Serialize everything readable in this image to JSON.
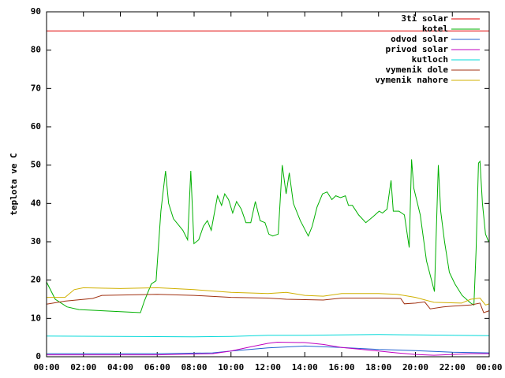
{
  "chart_data": {
    "type": "line",
    "ylabel": "teplota ve C",
    "xlim": [
      0,
      24
    ],
    "xticks": [
      {
        "value": 0,
        "label": "00:00"
      },
      {
        "value": 2,
        "label": "02:00"
      },
      {
        "value": 4,
        "label": "04:00"
      },
      {
        "value": 6,
        "label": "06:00"
      },
      {
        "value": 8,
        "label": "08:00"
      },
      {
        "value": 10,
        "label": "10:00"
      },
      {
        "value": 12,
        "label": "12:00"
      },
      {
        "value": 14,
        "label": "14:00"
      },
      {
        "value": 16,
        "label": "16:00"
      },
      {
        "value": 18,
        "label": "18:00"
      },
      {
        "value": 20,
        "label": "20:00"
      },
      {
        "value": 22,
        "label": "22:00"
      },
      {
        "value": 24,
        "label": "00:00"
      }
    ],
    "ylim": [
      0,
      90
    ],
    "yticks": [
      0,
      10,
      20,
      30,
      40,
      50,
      60,
      70,
      80,
      90
    ],
    "legend": "top-right",
    "series": [
      {
        "name": "3ti solar",
        "color": "#e00000",
        "x": [
          0,
          24
        ],
        "values": [
          85,
          85
        ]
      },
      {
        "name": "kotel",
        "color": "#00b000",
        "x": [
          0,
          0.47,
          1.11,
          1.75,
          3.03,
          4.32,
          5.09,
          5.3,
          5.68,
          5.94,
          6.2,
          6.45,
          6.62,
          6.88,
          7.39,
          7.65,
          7.82,
          7.99,
          8.25,
          8.5,
          8.72,
          8.93,
          9.27,
          9.49,
          9.66,
          9.87,
          10.09,
          10.3,
          10.56,
          10.81,
          11.07,
          11.32,
          11.58,
          11.84,
          12.05,
          12.26,
          12.56,
          12.78,
          12.99,
          13.16,
          13.38,
          13.76,
          14.19,
          14.4,
          14.66,
          14.96,
          15.21,
          15.47,
          15.68,
          15.94,
          16.2,
          16.37,
          16.58,
          16.92,
          17.31,
          17.69,
          18.03,
          18.21,
          18.46,
          18.68,
          18.8,
          19.1,
          19.4,
          19.66,
          19.79,
          19.91,
          20.26,
          20.6,
          20.9,
          21.03,
          21.24,
          21.37,
          21.58,
          21.84,
          22.14,
          22.53,
          23.0,
          23.17,
          23.29,
          23.42,
          23.5,
          23.63,
          23.8,
          23.97
        ],
        "values": [
          19.5,
          15,
          13,
          12.3,
          12,
          11.7,
          11.5,
          14.5,
          19,
          19.8,
          38,
          48.5,
          40,
          36,
          33,
          30.5,
          48.5,
          29.5,
          30.5,
          34,
          35.5,
          33,
          42,
          39.5,
          42.5,
          41,
          37.5,
          40.5,
          38.5,
          35,
          35,
          40.5,
          35.5,
          35,
          32,
          31.5,
          32,
          50,
          42.5,
          48,
          40,
          35.5,
          31.5,
          34,
          39,
          42.5,
          43,
          41,
          42,
          41.5,
          42,
          39.5,
          39.5,
          37,
          35,
          36.5,
          38,
          37.5,
          38.5,
          46,
          38,
          38,
          37,
          28.5,
          51.5,
          44,
          37,
          25,
          19.5,
          17,
          50,
          38,
          30,
          22,
          19,
          16,
          14,
          13.5,
          28,
          50.5,
          51,
          40,
          32,
          30
        ]
      },
      {
        "name": "odvod solar",
        "color": "#2060d0",
        "x": [
          0,
          6,
          9,
          10,
          12,
          14,
          16,
          18,
          20,
          22,
          24
        ],
        "values": [
          0.8,
          0.8,
          1,
          1.5,
          2.3,
          2.8,
          2.4,
          1.9,
          1.6,
          1.2,
          1
        ]
      },
      {
        "name": "privod solar",
        "color": "#c000c0",
        "x": [
          0,
          6,
          9,
          10,
          11,
          12,
          12.5,
          14,
          15,
          16,
          18,
          19,
          20,
          21,
          22,
          23,
          24
        ],
        "values": [
          0.5,
          0.5,
          0.8,
          1.5,
          2.5,
          3.5,
          3.8,
          3.7,
          3.2,
          2.4,
          1.5,
          1,
          0.6,
          0.4,
          0.6,
          0.8,
          0.8
        ]
      },
      {
        "name": "kutloch",
        "color": "#00d8d8",
        "x": [
          0,
          4,
          8,
          10,
          12,
          14,
          16,
          18,
          20,
          22,
          24
        ],
        "values": [
          5.4,
          5.3,
          5.2,
          5.3,
          5.6,
          5.6,
          5.7,
          5.8,
          5.7,
          5.6,
          5.5
        ]
      },
      {
        "name": "vymenik dole",
        "color": "#a03010",
        "x": [
          0,
          1,
          2.5,
          3,
          6,
          8,
          10,
          12,
          13,
          15,
          16,
          18,
          19.2,
          19.4,
          20,
          20.5,
          20.8,
          21.5,
          22,
          23,
          23.5,
          23.7,
          24
        ],
        "values": [
          13.7,
          14.5,
          15.2,
          16,
          16.3,
          16,
          15.5,
          15.3,
          15,
          14.8,
          15.3,
          15.3,
          15.2,
          13.8,
          14,
          14.3,
          12.5,
          13,
          13.2,
          13.5,
          14,
          11.5,
          12
        ]
      },
      {
        "name": "vymenik nahore",
        "color": "#d0b000",
        "x": [
          0,
          1,
          1.5,
          2,
          4,
          6,
          8,
          10,
          12,
          13,
          14,
          15,
          16,
          18,
          19,
          20,
          21,
          22.5,
          23,
          23.5,
          23.8,
          24
        ],
        "values": [
          15.5,
          15.5,
          17.5,
          18,
          17.8,
          18,
          17.5,
          16.8,
          16.5,
          16.8,
          16,
          15.8,
          16.5,
          16.5,
          16.3,
          15.5,
          14.2,
          14,
          15,
          15.3,
          13.5,
          13.8
        ]
      }
    ]
  }
}
